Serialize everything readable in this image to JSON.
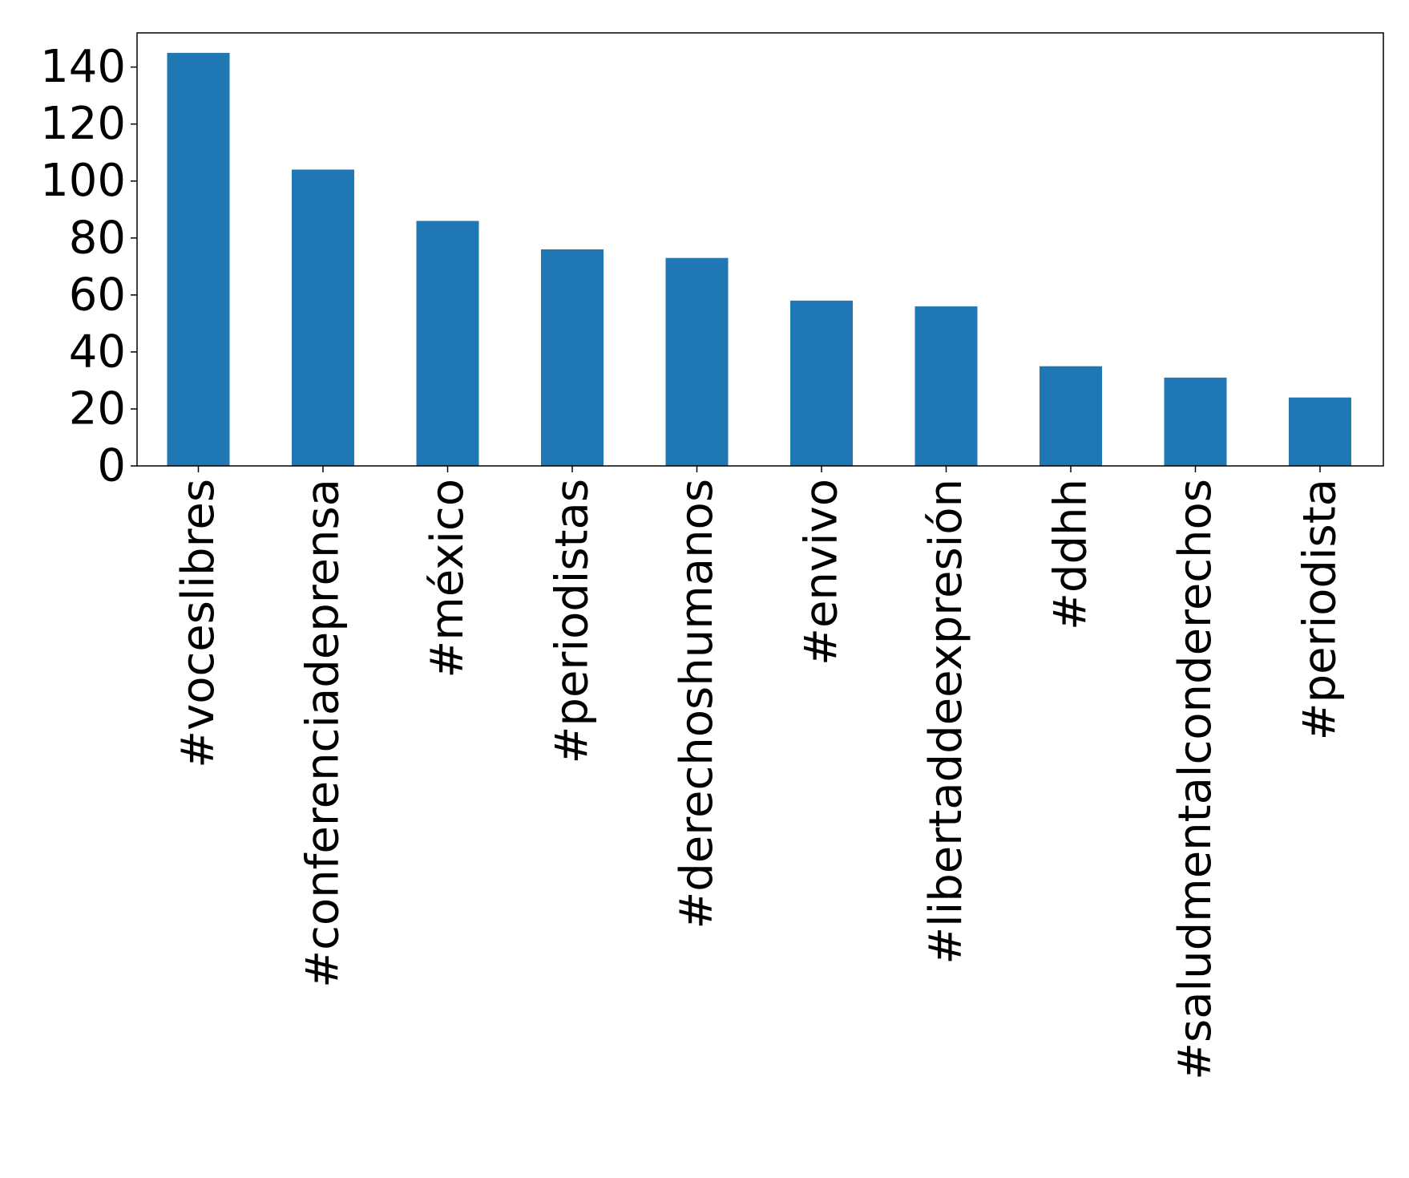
{
  "chart_data": {
    "type": "bar",
    "title": "",
    "xlabel": "",
    "ylabel": "",
    "categories": [
      "#voceslibres",
      "#conferenciadeprensa",
      "#méxico",
      "#periodistas",
      "#derechoshumanos",
      "#envivo",
      "#libertaddeexpresión",
      "#ddhh",
      "#saludmentalconderechos",
      "#periodista"
    ],
    "values": [
      145,
      104,
      86,
      76,
      73,
      58,
      56,
      35,
      31,
      24
    ],
    "ylim": [
      0,
      152
    ],
    "yticks": [
      0,
      20,
      40,
      60,
      80,
      100,
      120,
      140
    ],
    "ytick_labels": [
      "0",
      "20",
      "40",
      "60",
      "80",
      "100",
      "120",
      "140"
    ],
    "bar_color": "#1f77b4",
    "grid": false,
    "legend": "none"
  }
}
